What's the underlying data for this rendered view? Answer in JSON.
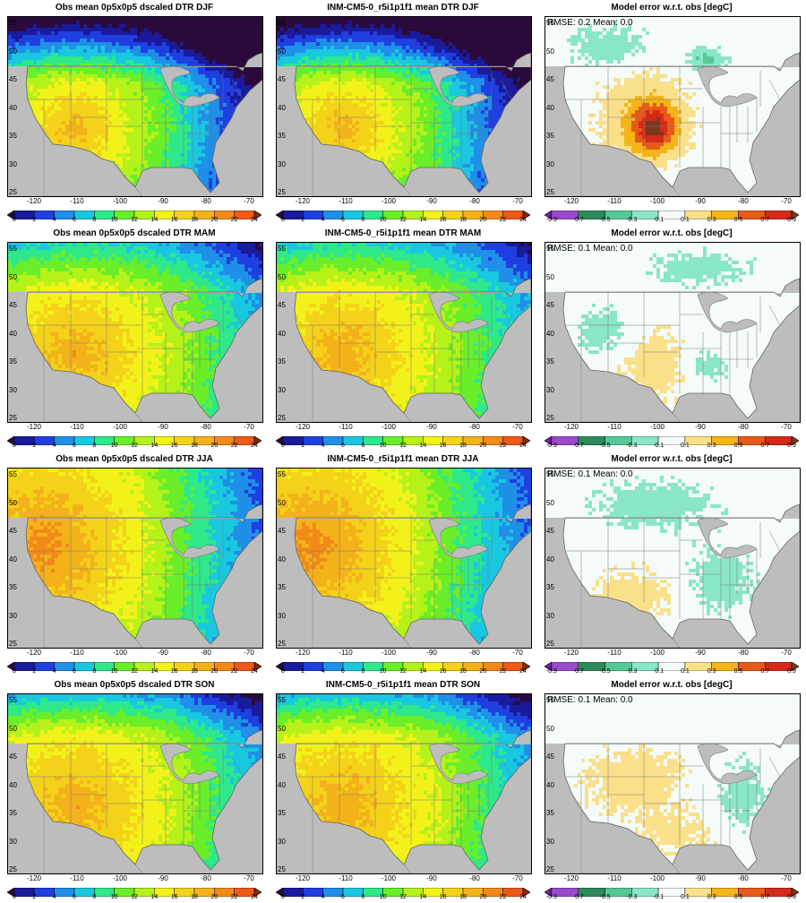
{
  "seasons": [
    "DJF",
    "MAM",
    "JJA",
    "SON"
  ],
  "rows": [
    {
      "obs_title": "Obs mean 0p5x0p5 dscaled DTR DJF",
      "model_title": "INM-CM5-0_r5i1p1f1 mean DTR DJF",
      "err_title": "Model error w.r.t. obs [degC]",
      "rmse_text": "RMSE: 0.2  Mean: 0.0"
    },
    {
      "obs_title": "Obs mean 0p5x0p5 dscaled DTR MAM",
      "model_title": "INM-CM5-0_r5i1p1f1 mean DTR MAM",
      "err_title": "Model error w.r.t. obs [degC]",
      "rmse_text": "RMSE: 0.1  Mean: 0.0"
    },
    {
      "obs_title": "Obs mean 0p5x0p5 dscaled DTR JJA",
      "model_title": "INM-CM5-0_r5i1p1f1 mean DTR JJA",
      "err_title": "Model error w.r.t. obs [degC]",
      "rmse_text": "RMSE: 0.1  Mean: 0.0"
    },
    {
      "obs_title": "Obs mean 0p5x0p5 dscaled DTR SON",
      "model_title": "INM-CM5-0_r5i1p1f1 mean DTR SON",
      "err_title": "Model error w.r.t. obs [degC]",
      "rmse_text": "RMSE: 0.1  Mean: 0.0"
    }
  ],
  "lat_ticks": [
    "55",
    "50",
    "45",
    "40",
    "35",
    "30",
    "25"
  ],
  "lon_ticks": [
    "-120",
    "-110",
    "-100",
    "-90",
    "-80",
    "-70"
  ],
  "dtr_colorbar": {
    "labels": [
      "0",
      "2",
      "4",
      "6",
      "8",
      "10",
      "12",
      "14",
      "16",
      "18",
      "20",
      "22",
      "24"
    ],
    "colors": [
      "#2a0a3a",
      "#1a1a9a",
      "#1f3fe0",
      "#1f8fe8",
      "#19c8e0",
      "#2ee88a",
      "#6aee2a",
      "#b4f21a",
      "#f2f21a",
      "#f4d21a",
      "#f4b21a",
      "#f28a1a",
      "#ee5a1a",
      "#8a2a0a"
    ]
  },
  "err_colorbar": {
    "labels": [
      "-0.9",
      "-0.7",
      "-0.5",
      "-0.3",
      "-0.1",
      "0.1",
      "0.3",
      "0.5",
      "0.7",
      "0.9"
    ],
    "colors": [
      "#7a1aa8",
      "#9a4acc",
      "#2e8a5a",
      "#56c898",
      "#8ae6c8",
      "#f4fbfa",
      "#fbe08a",
      "#f4b41a",
      "#e85a1a",
      "#d42a1a",
      "#7a3a1a"
    ]
  }
}
